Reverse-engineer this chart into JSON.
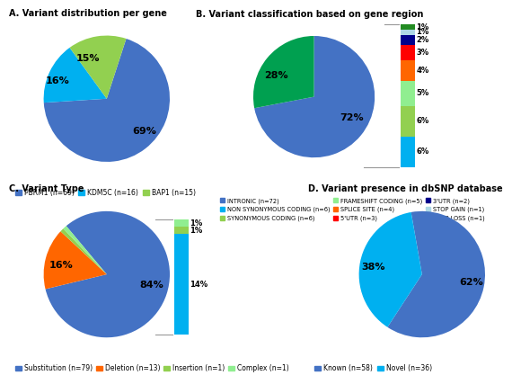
{
  "panelA": {
    "title": "A. Variant distribution per gene",
    "values": [
      69,
      16,
      15
    ],
    "pct_labels": [
      "69%",
      "16%",
      "15%"
    ],
    "colors": [
      "#4472C4",
      "#00B0F0",
      "#92D050"
    ],
    "startangle": 72,
    "legend": [
      "PBRM1 (n=69)",
      "KDM5C (n=16)",
      "BAP1 (n=15)"
    ],
    "legend_colors": [
      "#4472C4",
      "#00B0F0",
      "#92D050"
    ]
  },
  "panelB": {
    "title": "B. Variant classification based on gene region",
    "pie_values": [
      72,
      28
    ],
    "pie_labels": [
      "72%",
      "28%"
    ],
    "pie_colors": [
      "#4472C4",
      "#00A050"
    ],
    "startangle": 90,
    "bar_values": [
      6,
      6,
      5,
      4,
      3,
      2,
      1,
      1
    ],
    "bar_colors": [
      "#00B0F0",
      "#92D050",
      "#90EE90",
      "#FF6600",
      "#FF0000",
      "#00008B",
      "#ADD8E6",
      "#228B22"
    ],
    "bar_labels": [
      "6%",
      "6%",
      "5%",
      "4%",
      "3%",
      "2%",
      "1%",
      "1%"
    ],
    "legend": [
      "INTRONIC (n=72)",
      "NON SYNONYMOUS CODING (n=6)",
      "SYNONYMOUS CODING (n=6)",
      "FRAMESHIFT CODING (n=5)",
      "SPLICE SITE (n=4)",
      "5'UTR (n=3)",
      "3'UTR (n=2)",
      "STOP GAIN (n=1)",
      "STOP LOSS (n=1)"
    ],
    "legend_colors": [
      "#4472C4",
      "#00B0F0",
      "#92D050",
      "#90EE90",
      "#FF6600",
      "#FF0000",
      "#00008B",
      "#ADD8E6",
      "#228B22"
    ]
  },
  "panelC": {
    "title": "C. Variant Type",
    "pie_values": [
      84,
      16,
      1,
      1
    ],
    "pie_labels": [
      "84%",
      "16%",
      "",
      ""
    ],
    "pie_colors": [
      "#4472C4",
      "#FF6600",
      "#92D050",
      "#90EE90"
    ],
    "startangle": 130,
    "bar_values": [
      14,
      1,
      1
    ],
    "bar_colors": [
      "#00B0F0",
      "#92D050",
      "#90EE90"
    ],
    "bar_labels": [
      "14%",
      "1%",
      "1%"
    ],
    "legend": [
      "Substitution (n=79)",
      "Deletion (n=13)",
      "Insertion (n=1)",
      "Complex (n=1)"
    ],
    "legend_colors": [
      "#4472C4",
      "#FF6600",
      "#92D050",
      "#90EE90"
    ]
  },
  "panelD": {
    "title": "D. Variant presence in dbSNP database",
    "values": [
      62,
      38
    ],
    "pct_labels": [
      "62%",
      "38%"
    ],
    "colors": [
      "#4472C4",
      "#00B0F0"
    ],
    "startangle": 100,
    "legend": [
      "Known (n=58)",
      "Novel (n=36)"
    ],
    "legend_colors": [
      "#4472C4",
      "#00B0F0"
    ]
  }
}
